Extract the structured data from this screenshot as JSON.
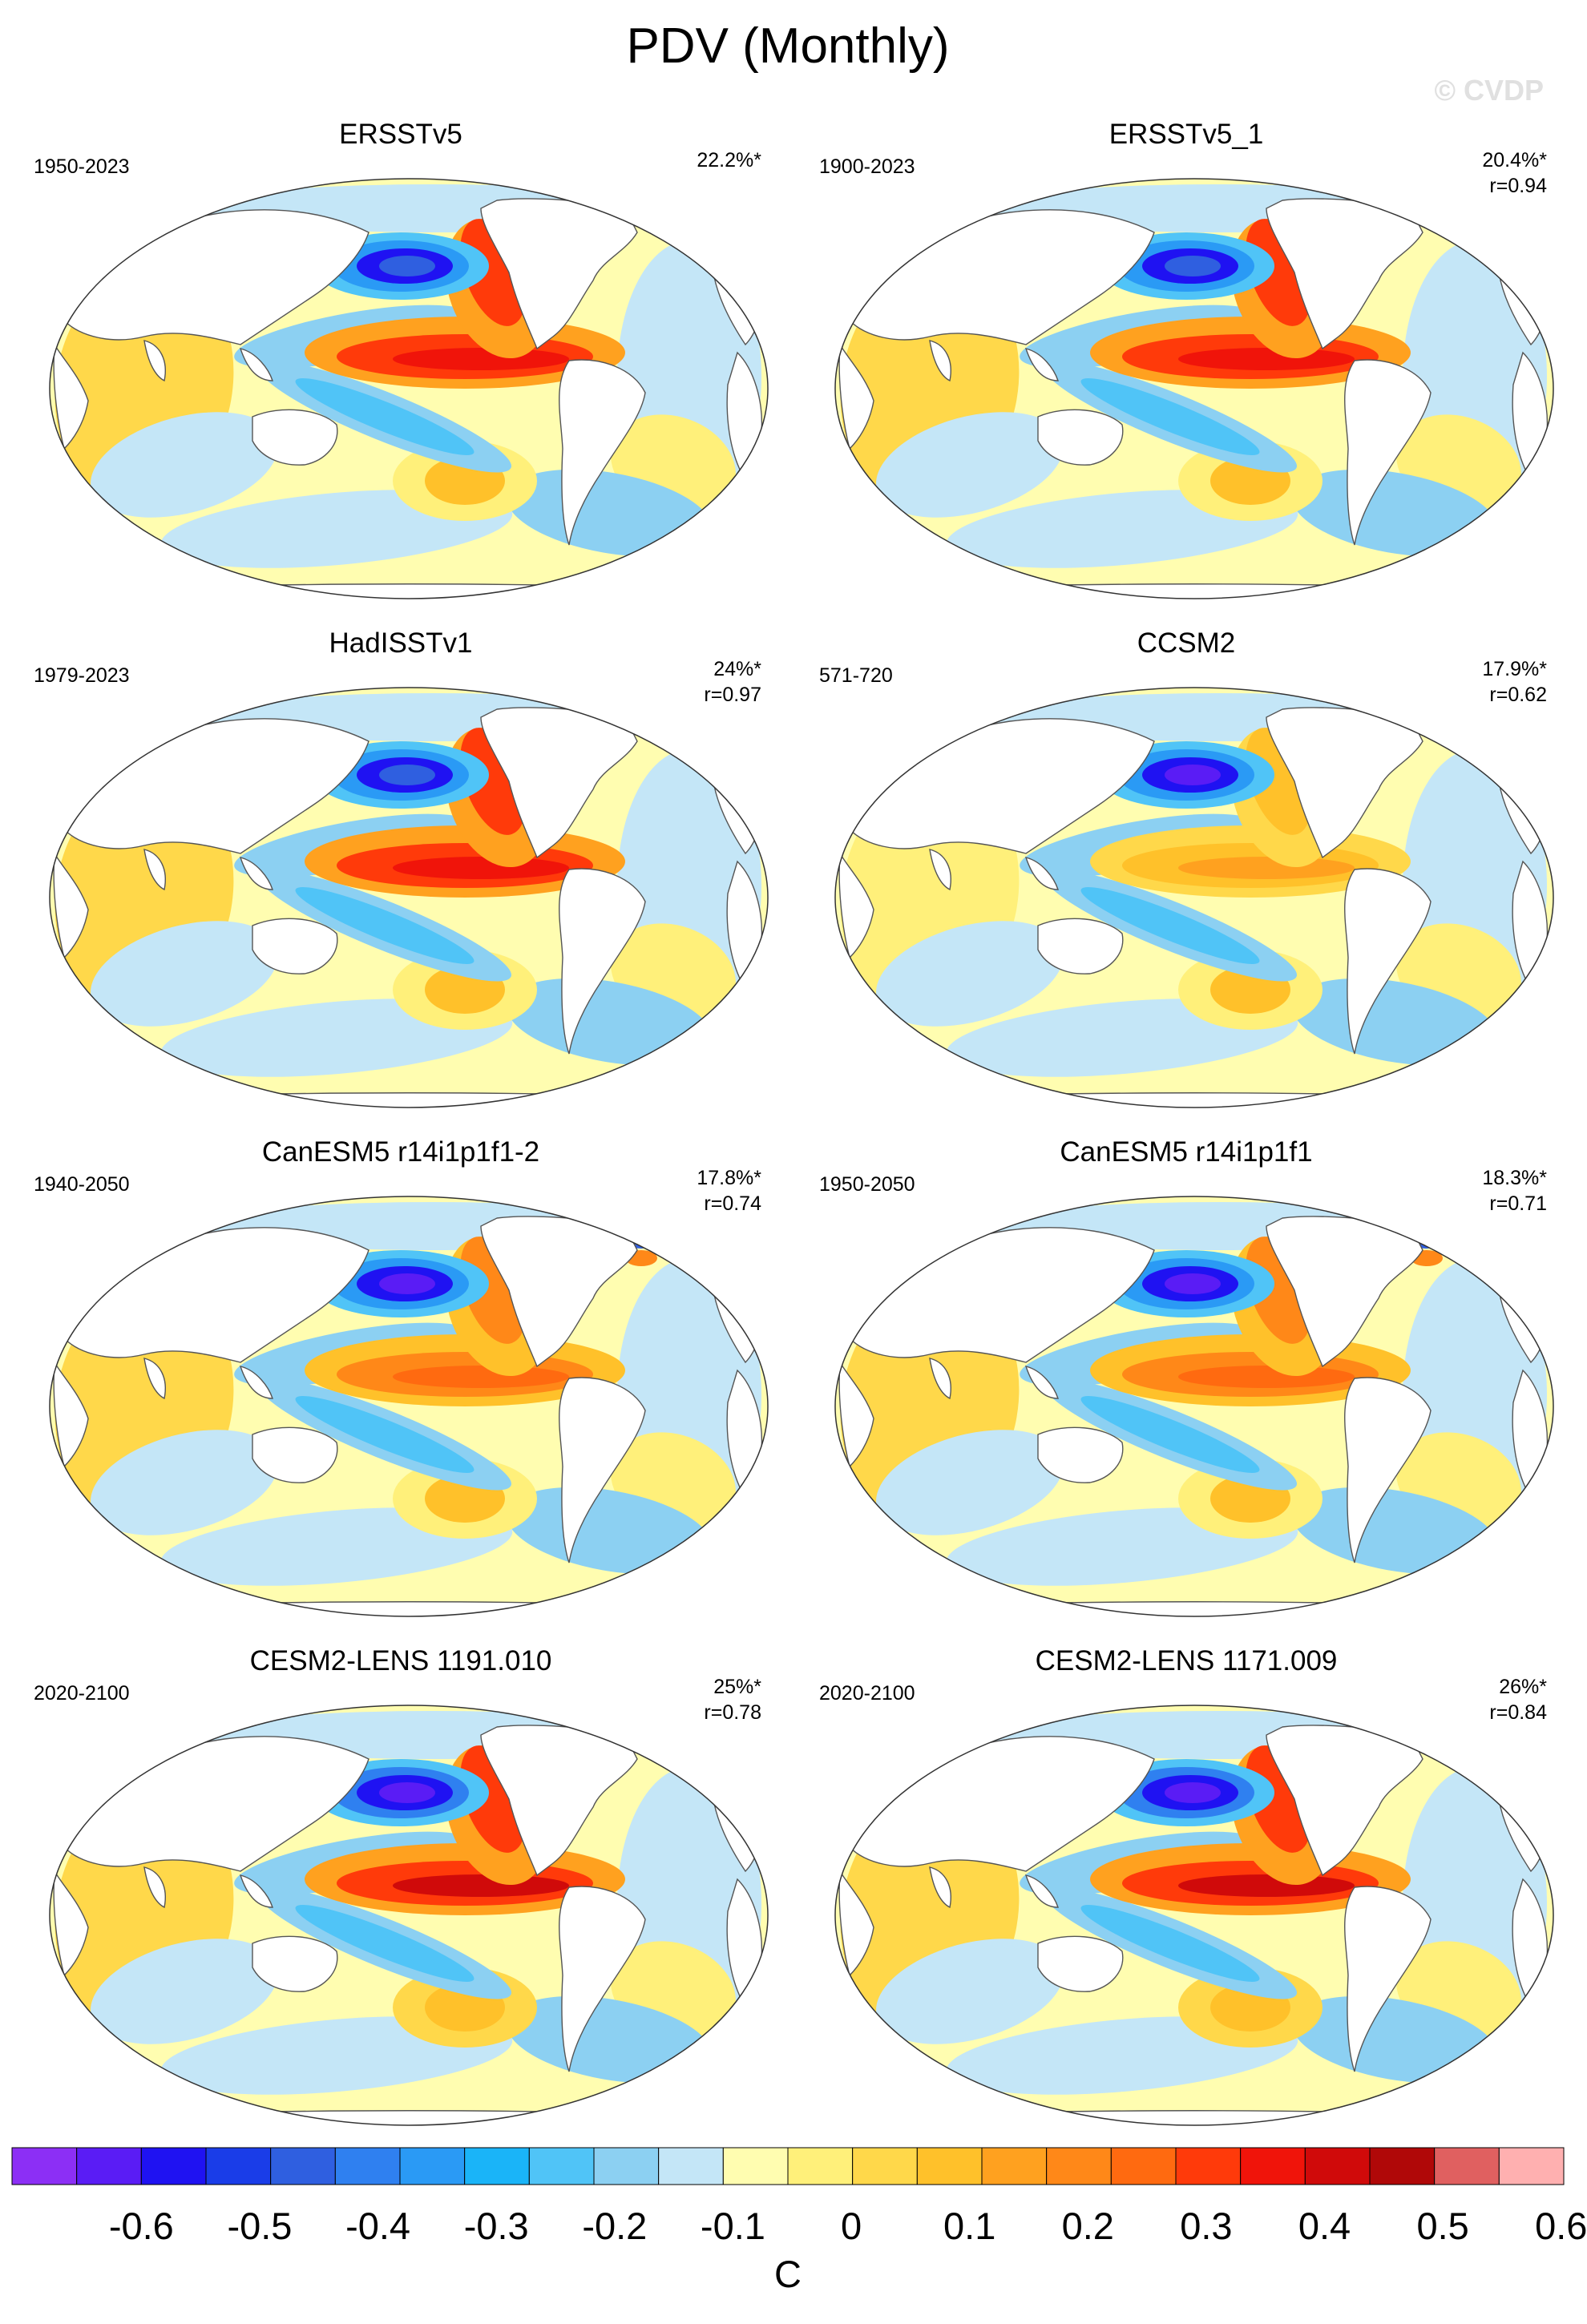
{
  "title": "PDV (Monthly)",
  "watermark": "© CVDP",
  "panels": [
    {
      "name": "ERSSTv5",
      "period": "1950-2023",
      "pct": "22.2%*",
      "corr": "",
      "col": 0,
      "row": 0,
      "var": 0
    },
    {
      "name": "ERSSTv5_1",
      "period": "1900-2023",
      "pct": "20.4%*",
      "corr": "r=0.94",
      "col": 1,
      "row": 0,
      "var": 0
    },
    {
      "name": "HadISSTv1",
      "period": "1979-2023",
      "pct": "24%*",
      "corr": "r=0.97",
      "col": 0,
      "row": 1,
      "var": 0
    },
    {
      "name": "CCSM2",
      "period": "571-720",
      "pct": "17.9%*",
      "corr": "r=0.62",
      "col": 1,
      "row": 1,
      "var": 1
    },
    {
      "name": "CanESM5 r14i1p1f1-2",
      "period": "1940-2050",
      "pct": "17.8%*",
      "corr": "r=0.74",
      "col": 0,
      "row": 2,
      "var": 2
    },
    {
      "name": "CanESM5 r14i1p1f1",
      "period": "1950-2050",
      "pct": "18.3%*",
      "corr": "r=0.71",
      "col": 1,
      "row": 2,
      "var": 2
    },
    {
      "name": "CESM2-LENS 1191.010",
      "period": "2020-2100",
      "pct": "25%*",
      "corr": "r=0.78",
      "col": 0,
      "row": 3,
      "var": 3
    },
    {
      "name": "CESM2-LENS 1171.009",
      "period": "2020-2100",
      "pct": "26%*",
      "corr": "r=0.84",
      "col": 1,
      "row": 3,
      "var": 3
    }
  ],
  "colorbar": {
    "units": "C",
    "colors": [
      "#8c2ff5",
      "#5a1cf5",
      "#1f12f2",
      "#1a3de8",
      "#2f5fe0",
      "#2f80f0",
      "#2a9af5",
      "#1ab4f8",
      "#50c4f7",
      "#8cd0f2",
      "#c4e6f7",
      "#fffdb0",
      "#fff07a",
      "#ffd84a",
      "#ffc12a",
      "#ffa11f",
      "#ff8818",
      "#ff6a10",
      "#ff3a0a",
      "#f0140a",
      "#d00a0a",
      "#b00808",
      "#e06060",
      "#ffb0b0"
    ],
    "tick_labels": [
      "-0.6",
      "-0.5",
      "-0.4",
      "-0.3",
      "-0.2",
      "-0.1",
      "0",
      "0.1",
      "0.2",
      "0.3",
      "0.4",
      "0.5",
      "0.6"
    ]
  }
}
